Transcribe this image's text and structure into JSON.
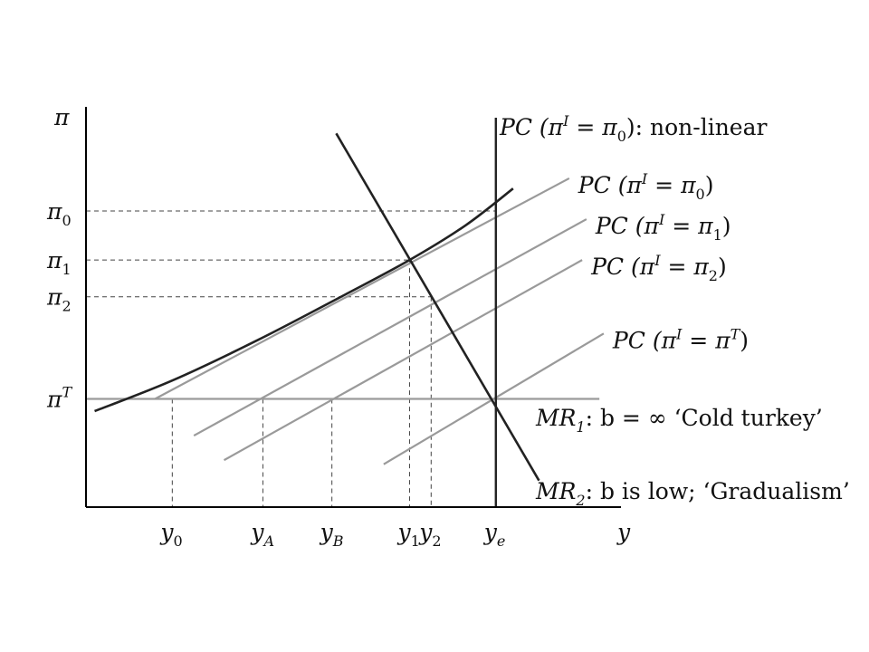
{
  "chart_data": {
    "type": "line",
    "title": "",
    "xlabel": "y",
    "ylabel": "π",
    "grid": false,
    "colors": {
      "curve": "#222222",
      "pc_line": "#9a9a9a",
      "guide": "#444444"
    },
    "x_ticks": [
      {
        "base": "y",
        "sub": "0",
        "x": 1.0
      },
      {
        "base": "y",
        "sub": "A",
        "x": 2.05
      },
      {
        "base": "y",
        "sub": "B",
        "x": 2.85
      },
      {
        "base": "y",
        "sub": "1",
        "x": 3.75
      },
      {
        "base": "y",
        "sub": "2",
        "x": 4.0
      },
      {
        "base": "y",
        "sub": "e",
        "x": 4.75
      }
    ],
    "y_ticks": [
      {
        "base": "π",
        "sub": "0",
        "sup": "",
        "y": 4.6
      },
      {
        "base": "π",
        "sub": "1",
        "sup": "",
        "y": 3.4
      },
      {
        "base": "π",
        "sub": "2",
        "sup": "",
        "y": 2.5
      },
      {
        "base": "π",
        "sub": "",
        "sup": "T",
        "y": 0.0
      }
    ],
    "pc_lines": [
      {
        "lead": "PC (",
        "pi": "π",
        "sup": "I",
        "rest": " = ",
        "pi2": "π",
        "sub2": "0",
        "sup2": "",
        "tail": ")",
        "x": [
          0.8,
          5.6
        ],
        "y": [
          0.0,
          5.4
        ]
      },
      {
        "lead": "PC (",
        "pi": "π",
        "sup": "I",
        "rest": " = ",
        "pi2": "π",
        "sub2": "1",
        "sup2": "",
        "tail": ")",
        "x": [
          1.25,
          5.8
        ],
        "y": [
          -0.9,
          4.4
        ]
      },
      {
        "lead": "PC (",
        "pi": "π",
        "sup": "I",
        "rest": " = ",
        "pi2": "π",
        "sub2": "2",
        "sup2": "",
        "tail": ")",
        "x": [
          1.6,
          5.75
        ],
        "y": [
          -1.5,
          3.4
        ]
      },
      {
        "lead": "PC (",
        "pi": "π",
        "sup": "I",
        "rest": " = ",
        "pi2": "π",
        "sub2": "",
        "sup2": "T",
        "tail": ")",
        "x": [
          3.45,
          6.0
        ],
        "y": [
          -1.6,
          1.6
        ]
      }
    ],
    "nonlinear_pc": {
      "label_lead": "PC (",
      "pi": "π",
      "sup": "I",
      "rest": " = ",
      "pi2": "π",
      "sub2": "0",
      "tail": "): non-linear",
      "x": [
        0.1,
        1.0,
        2.0,
        3.0,
        3.75,
        4.4,
        4.95
      ],
      "y": [
        -0.3,
        0.45,
        1.45,
        2.55,
        3.4,
        4.25,
        5.15
      ]
    },
    "mr_target": {
      "label_base": "MR",
      "label_sub": "1",
      "label_rest": ": b = ∞ ‘Cold turkey’",
      "y": 0.0,
      "x": [
        0.0,
        5.95
      ]
    },
    "mr_gradual": {
      "label_base": "MR",
      "label_sub": "2",
      "label_rest": ": b is low; ‘Gradualism’",
      "x": [
        2.9,
        5.25
      ],
      "y": [
        6.5,
        -2.0
      ]
    },
    "ye_line": {
      "x": 4.75
    },
    "guides": [
      {
        "x": 1.0,
        "y": 0.0
      },
      {
        "x": 2.05,
        "y": 0.0
      },
      {
        "x": 2.85,
        "y": 0.0
      },
      {
        "x": 3.75,
        "y": 3.4
      },
      {
        "x": 4.0,
        "y": 2.5
      },
      {
        "x": 4.75,
        "y": 4.6
      }
    ],
    "xlim": [
      0.0,
      6.2
    ],
    "ylim": [
      -2.65,
      7.15
    ]
  }
}
